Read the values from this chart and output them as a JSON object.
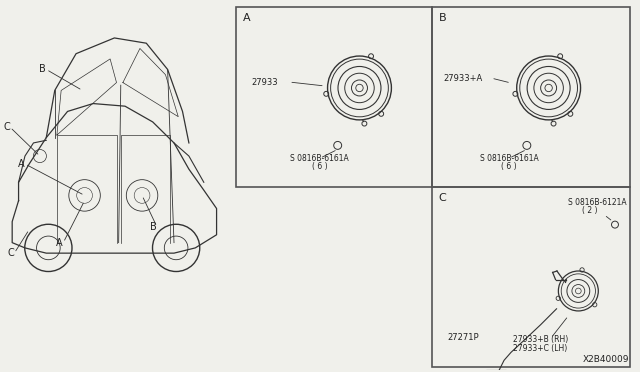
{
  "bg_color": "#f0f0eb",
  "border_color": "#555555",
  "line_color": "#333333",
  "text_color": "#222222",
  "diagram_id": "X2B40009",
  "panel_A_label": "A",
  "panel_B_label": "B",
  "panel_C_label": "C",
  "part_27933": "27933",
  "part_27933A": "27933+A",
  "part_27271P": "27271P",
  "part_27933B": "27933+B (RH)",
  "part_27933C": "27933+C (LH)",
  "screw_A_line1": "S 0816B-6161A",
  "screw_A_line2": "( 6 )",
  "screw_B_line1": "S 0816B-6161A",
  "screw_B_line2": "( 6 )",
  "screw_C_line1": "S 0816B-6121A",
  "screw_C_line2": "( 2 )"
}
